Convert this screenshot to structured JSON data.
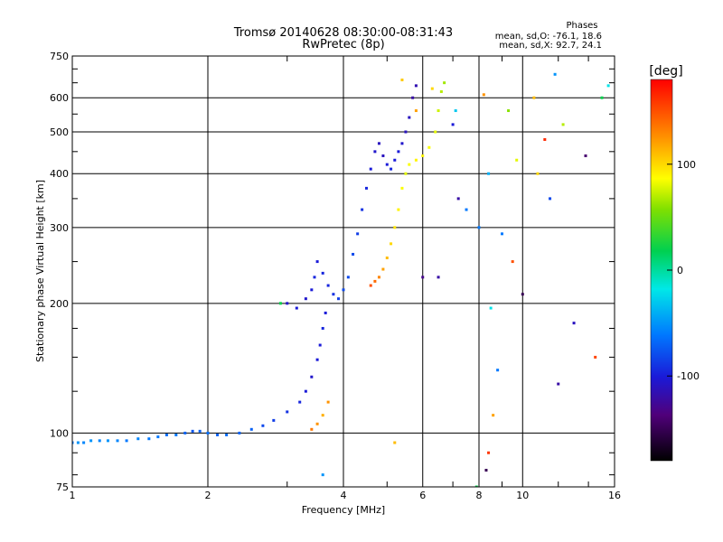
{
  "chart_data": {
    "type": "scatter",
    "title": "Tromsø 20140628 08:30:00-08:31:43",
    "subtitle": "RwPretec (8p)",
    "xlabel": "Frequency [MHz]",
    "ylabel": "Stationary phase Virtual Height [km]",
    "x_scale": "log",
    "y_scale": "log",
    "xlim": [
      1,
      16
    ],
    "ylim": [
      75,
      750
    ],
    "xticks": [
      "1",
      "2",
      "4",
      "6",
      "8",
      "10",
      "16"
    ],
    "yticks": [
      "75",
      "100",
      "200",
      "300",
      "400",
      "500",
      "600",
      "750"
    ],
    "grid": true,
    "phase_stats": {
      "heading": "Phases",
      "o_line": "mean, sd,O: -76.1, 18.6",
      "x_line": "mean, sd,X: 92.7, 24.1"
    },
    "colorbar": {
      "label": "[deg]",
      "range": [
        -180,
        180
      ],
      "ticks": [
        "100",
        "0",
        "-100"
      ]
    },
    "series": [
      {
        "trace": "lower-trace",
        "points": [
          [
            1.0,
            95,
            -60
          ],
          [
            1.03,
            95,
            -50
          ],
          [
            1.06,
            95,
            -55
          ],
          [
            1.1,
            96,
            -50
          ],
          [
            1.15,
            96,
            -55
          ],
          [
            1.2,
            96,
            -50
          ],
          [
            1.26,
            96,
            -55
          ],
          [
            1.32,
            96,
            -60
          ],
          [
            1.4,
            97,
            -55
          ],
          [
            1.48,
            97,
            -60
          ],
          [
            1.55,
            98,
            -60
          ],
          [
            1.62,
            99,
            -65
          ],
          [
            1.7,
            99,
            -60
          ],
          [
            1.78,
            100,
            -70
          ],
          [
            1.85,
            101,
            -75
          ],
          [
            1.92,
            101,
            -70
          ],
          [
            2.0,
            100,
            -65
          ],
          [
            2.1,
            99,
            -70
          ],
          [
            2.2,
            99,
            -65
          ],
          [
            2.35,
            100,
            -70
          ],
          [
            2.5,
            102,
            -70
          ],
          [
            2.65,
            104,
            -80
          ],
          [
            2.8,
            107,
            -85
          ],
          [
            3.0,
            112,
            -90
          ],
          [
            3.2,
            118,
            -95
          ],
          [
            3.3,
            125,
            -100
          ],
          [
            3.4,
            135,
            -105
          ],
          [
            3.5,
            148,
            -100
          ],
          [
            3.55,
            160,
            -100
          ],
          [
            3.6,
            175,
            -95
          ],
          [
            3.65,
            190,
            -100
          ]
        ]
      },
      {
        "trace": "o-mode-upper",
        "points": [
          [
            3.0,
            200,
            -105
          ],
          [
            3.15,
            195,
            -100
          ],
          [
            3.3,
            205,
            -105
          ],
          [
            3.4,
            215,
            -100
          ],
          [
            3.45,
            230,
            -95
          ],
          [
            3.5,
            250,
            -100
          ],
          [
            3.6,
            235,
            -95
          ],
          [
            3.7,
            220,
            -95
          ],
          [
            3.8,
            210,
            -90
          ],
          [
            3.9,
            205,
            -85
          ],
          [
            4.0,
            215,
            -80
          ],
          [
            4.1,
            230,
            -80
          ],
          [
            4.2,
            260,
            -80
          ],
          [
            4.3,
            290,
            -85
          ],
          [
            4.4,
            330,
            -90
          ],
          [
            4.5,
            370,
            -95
          ],
          [
            4.6,
            410,
            -100
          ],
          [
            4.7,
            450,
            -105
          ],
          [
            4.8,
            470,
            -110
          ],
          [
            4.9,
            440,
            -110
          ],
          [
            5.0,
            420,
            -100
          ],
          [
            5.1,
            410,
            -95
          ],
          [
            5.2,
            430,
            -100
          ],
          [
            5.3,
            450,
            -100
          ],
          [
            5.4,
            470,
            -105
          ],
          [
            5.5,
            500,
            -110
          ],
          [
            5.6,
            540,
            -110
          ],
          [
            5.7,
            600,
            -120
          ],
          [
            5.8,
            640,
            -115
          ]
        ]
      },
      {
        "trace": "x-mode-upper",
        "points": [
          [
            4.6,
            220,
            150
          ],
          [
            4.7,
            225,
            140
          ],
          [
            4.8,
            230,
            130
          ],
          [
            4.9,
            240,
            120
          ],
          [
            5.0,
            255,
            110
          ],
          [
            5.1,
            275,
            100
          ],
          [
            5.2,
            300,
            95
          ],
          [
            5.3,
            330,
            90
          ],
          [
            5.4,
            370,
            85
          ],
          [
            5.5,
            400,
            80
          ],
          [
            5.6,
            420,
            85
          ],
          [
            5.8,
            430,
            90
          ],
          [
            6.0,
            440,
            90
          ],
          [
            6.2,
            460,
            85
          ],
          [
            6.4,
            500,
            80
          ],
          [
            6.5,
            560,
            75
          ],
          [
            6.6,
            620,
            70
          ],
          [
            6.7,
            650,
            65
          ]
        ]
      },
      {
        "trace": "low-x",
        "points": [
          [
            3.4,
            102,
            135
          ],
          [
            3.5,
            105,
            125
          ],
          [
            3.6,
            110,
            115
          ],
          [
            3.7,
            118,
            125
          ]
        ]
      },
      {
        "trace": "sparse",
        "points": [
          [
            2.9,
            200,
            20
          ],
          [
            3.6,
            80,
            -50
          ],
          [
            5.2,
            95,
            110
          ],
          [
            5.8,
            560,
            120
          ],
          [
            6.3,
            630,
            100
          ],
          [
            7.2,
            350,
            -120
          ],
          [
            7.5,
            330,
            -60
          ],
          [
            8.0,
            300,
            -60
          ],
          [
            8.2,
            610,
            125
          ],
          [
            8.4,
            400,
            -40
          ],
          [
            8.4,
            90,
            160
          ],
          [
            8.5,
            195,
            -20
          ],
          [
            9.0,
            290,
            -60
          ],
          [
            9.5,
            250,
            150
          ],
          [
            10.0,
            210,
            -150
          ],
          [
            10.6,
            600,
            110
          ],
          [
            11.2,
            480,
            165
          ],
          [
            11.8,
            680,
            -50
          ],
          [
            12.3,
            520,
            70
          ],
          [
            13.0,
            180,
            -110
          ],
          [
            13.8,
            440,
            -140
          ],
          [
            14.5,
            150,
            155
          ],
          [
            15.0,
            600,
            20
          ],
          [
            15.5,
            640,
            -20
          ],
          [
            6.5,
            230,
            -120
          ],
          [
            7.0,
            520,
            -100
          ],
          [
            8.8,
            140,
            -60
          ],
          [
            9.3,
            560,
            60
          ],
          [
            10.8,
            400,
            100
          ],
          [
            12.0,
            130,
            -120
          ],
          [
            8.3,
            82,
            -150
          ],
          [
            7.9,
            75,
            20
          ],
          [
            8.6,
            110,
            120
          ],
          [
            5.4,
            660,
            105
          ],
          [
            6.0,
            230,
            -130
          ],
          [
            7.1,
            560,
            -30
          ],
          [
            9.7,
            430,
            80
          ],
          [
            11.5,
            350,
            -80
          ]
        ]
      }
    ]
  }
}
